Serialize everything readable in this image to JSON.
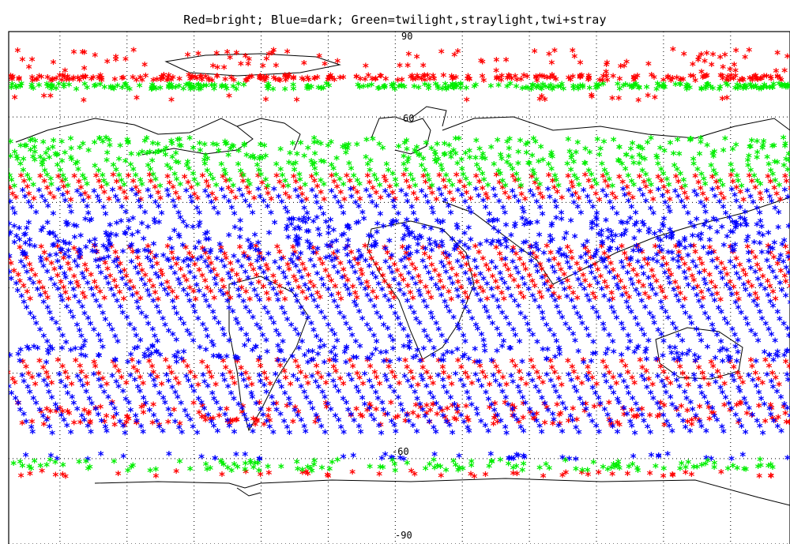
{
  "title": "Red=bright; Blue=dark; Green=twilight,straylight,twi+stray",
  "map": {
    "projection": "cylindrical",
    "lat_grid": [
      90,
      60,
      30,
      0,
      -30,
      -60,
      -90
    ],
    "lon_grid": [
      -180,
      -150,
      -120,
      -90,
      -60,
      -30,
      0,
      30,
      60,
      90,
      120,
      150,
      180
    ],
    "grid_labels": [
      "90",
      "60",
      "-60",
      "-90"
    ],
    "marker_glyph": "*",
    "coastline_color": "#000000"
  },
  "legend": [
    {
      "name": "Red=bright",
      "color": "#ff0000"
    },
    {
      "name": "Blue=dark",
      "color": "#0000ff"
    },
    {
      "name": "Green=twilight,straylight,twi+stray",
      "color": "#00ee00"
    }
  ],
  "chart_data": {
    "type": "scatter",
    "title": "Red=bright; Blue=dark; Green=twilight,straylight,twi+stray",
    "x_range": [
      -180,
      180
    ],
    "y_range": [
      -90,
      90
    ],
    "series": [
      {
        "name": "Red=bright",
        "color": "#ff0000",
        "bands": [
          {
            "lat": [
              76,
              84
            ],
            "pattern": "scattered"
          },
          {
            "lat": [
              73,
              75
            ],
            "pattern": "continuous"
          },
          {
            "lat": [
              66,
              68
            ],
            "pattern": "sparse"
          },
          {
            "lat": [
              30,
              40
            ],
            "pattern": "diagonal-tracks"
          },
          {
            "lat": [
              -5,
              15
            ],
            "pattern": "diagonal-tracks"
          },
          {
            "lat": [
              -35,
              -25
            ],
            "pattern": "diagonal-tracks"
          },
          {
            "lat": [
              -48,
              -40
            ],
            "pattern": "horizontal-stripes"
          },
          {
            "lat": [
              -66,
              -64
            ],
            "pattern": "scattered"
          }
        ]
      },
      {
        "name": "Blue=dark",
        "color": "#0000ff",
        "bands": [
          {
            "lat": [
              25,
              35
            ],
            "pattern": "diagonal-tracks"
          },
          {
            "lat": [
              10,
              25
            ],
            "pattern": "dense"
          },
          {
            "lat": [
              -20,
              10
            ],
            "pattern": "diagonal-tracks"
          },
          {
            "lat": [
              -26,
              -20
            ],
            "pattern": "dense"
          },
          {
            "lat": [
              -52,
              -30
            ],
            "pattern": "diagonal-tracks"
          },
          {
            "lat": [
              -60,
              -58
            ],
            "pattern": "scattered"
          }
        ]
      },
      {
        "name": "Green=twilight,straylight,twi+stray",
        "color": "#00ee00",
        "bands": [
          {
            "lat": [
              70,
              72
            ],
            "pattern": "continuous"
          },
          {
            "lat": [
              44,
              53
            ],
            "pattern": "dense"
          },
          {
            "lat": [
              35,
              44
            ],
            "pattern": "diagonal-tracks"
          },
          {
            "lat": [
              -64,
              -60
            ],
            "pattern": "dense"
          }
        ]
      }
    ]
  }
}
